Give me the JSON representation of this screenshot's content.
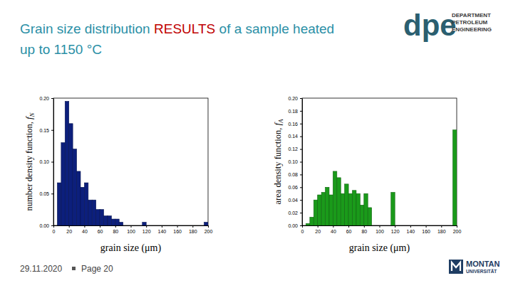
{
  "slide": {
    "title": [
      [
        "Grain size distribution",
        "RESULTS",
        "of a sample heated"
      ],
      [
        "up to 1150 °C"
      ]
    ],
    "date": "29.11.2020",
    "page": "Page 20",
    "department_logo": {
      "abbr": "dpe",
      "lines": [
        "DEPARTMENT",
        "PETROLEUM",
        "ENGINEERING"
      ]
    },
    "university_logo": [
      "MONTAN",
      "UNIVERSITÄT"
    ]
  },
  "chart_data": [
    {
      "type": "histogram",
      "x_label": "grain size (μm)",
      "y_label": [
        "number density function, ",
        "f",
        "N"
      ],
      "bins": [
        5,
        10,
        15,
        20,
        25,
        30,
        35,
        40,
        45,
        50,
        55,
        60,
        65,
        70,
        75,
        80,
        85,
        90,
        95,
        100,
        105,
        110,
        115,
        120,
        125,
        130,
        135,
        140,
        145,
        150,
        155,
        160,
        165,
        170,
        175,
        180,
        185,
        190,
        195,
        200
      ],
      "values": [
        0.067,
        0.13,
        0.195,
        0.16,
        0.12,
        0.085,
        0.06,
        0.067,
        0.04,
        0.04,
        0.025,
        0.025,
        0.015,
        0.015,
        0.01,
        0.01,
        0.005,
        0,
        0,
        0,
        0,
        0,
        0.005,
        0,
        0,
        0,
        0,
        0,
        0,
        0,
        0,
        0,
        0,
        0,
        0,
        0,
        0,
        0,
        0.005
      ],
      "color": "#0c1f7c",
      "xlim": [
        0,
        200
      ],
      "xticks": [
        0,
        20,
        40,
        60,
        80,
        100,
        120,
        140,
        160,
        180,
        200
      ],
      "ylim": [
        0,
        0.2
      ],
      "yticks": [
        {
          "value": 0,
          "label": "0.00"
        },
        {
          "value": 0.05,
          "label": "0.05"
        },
        {
          "value": 0.1,
          "label": "0.10"
        },
        {
          "value": 0.15,
          "label": "0.15"
        },
        {
          "value": 0.2,
          "label": "0.20"
        }
      ]
    },
    {
      "type": "histogram",
      "x_label": "grain size (μm)",
      "y_label": [
        "area density function, ",
        "f",
        "A"
      ],
      "bins": [
        5,
        10,
        15,
        20,
        25,
        30,
        35,
        40,
        45,
        50,
        55,
        60,
        65,
        70,
        75,
        80,
        85,
        90,
        95,
        100,
        105,
        110,
        115,
        120,
        125,
        130,
        135,
        140,
        145,
        150,
        155,
        160,
        165,
        170,
        175,
        180,
        185,
        190,
        195,
        200
      ],
      "values": [
        0.003,
        0.013,
        0.04,
        0.048,
        0.052,
        0.06,
        0.048,
        0.085,
        0.075,
        0.05,
        0.065,
        0.05,
        0.055,
        0.05,
        0.032,
        0.05,
        0.028,
        0,
        0,
        0,
        0,
        0,
        0.052,
        0,
        0,
        0,
        0,
        0,
        0,
        0,
        0,
        0,
        0,
        0,
        0,
        0,
        0,
        0,
        0.15
      ],
      "color": "#1a9a1a",
      "xlim": [
        0,
        200
      ],
      "xticks": [
        0,
        20,
        40,
        60,
        80,
        100,
        120,
        140,
        160,
        180,
        200
      ],
      "ylim": [
        0,
        0.2
      ],
      "yticks": [
        {
          "value": 0,
          "label": "0.00"
        },
        {
          "value": 0.02,
          "label": "0.02"
        },
        {
          "value": 0.04,
          "label": "0.04"
        },
        {
          "value": 0.06,
          "label": "0.06"
        },
        {
          "value": 0.08,
          "label": "0.08"
        },
        {
          "value": 0.1,
          "label": "0.10"
        },
        {
          "value": 0.12,
          "label": "0.12"
        },
        {
          "value": 0.14,
          "label": "0.14"
        },
        {
          "value": 0.16,
          "label": "0.16"
        },
        {
          "value": 0.18,
          "label": "0.18"
        },
        {
          "value": 0.2,
          "label": "0.20"
        }
      ]
    }
  ]
}
